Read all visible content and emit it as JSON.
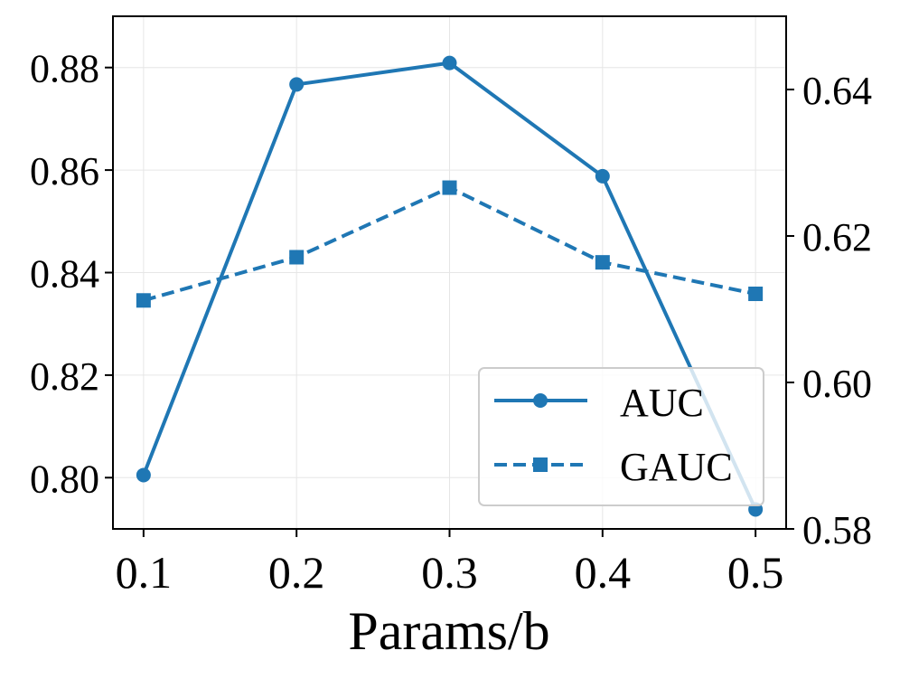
{
  "chart_data": {
    "type": "line",
    "title": "",
    "xlabel": "Params/b",
    "ylabel": "",
    "ylabel_right": "",
    "x": [
      0.1,
      0.2,
      0.3,
      0.4,
      0.5
    ],
    "x_tick_labels": [
      "0.1",
      "0.2",
      "0.3",
      "0.4",
      "0.5"
    ],
    "xlim": [
      0.08,
      0.52
    ],
    "ylim_left": [
      0.79,
      0.89
    ],
    "yticks_left": [
      "0.80",
      "0.82",
      "0.84",
      "0.86",
      "0.88"
    ],
    "ylim_right": [
      0.58,
      0.65
    ],
    "yticks_right": [
      "0.58",
      "0.60",
      "0.62",
      "0.64"
    ],
    "grid": true,
    "legend_position": "lower-right",
    "series": [
      {
        "name": "AUC",
        "axis": "left",
        "values": [
          0.8005,
          0.8767,
          0.8809,
          0.8588,
          0.7938
        ],
        "line_style": "solid",
        "marker": "circle",
        "color": "#1f77b4"
      },
      {
        "name": "GAUC",
        "axis": "right",
        "values": [
          0.6112,
          0.6171,
          0.6266,
          0.6164,
          0.6121
        ],
        "line_style": "dashed",
        "marker": "square",
        "color": "#1f77b4"
      }
    ]
  }
}
